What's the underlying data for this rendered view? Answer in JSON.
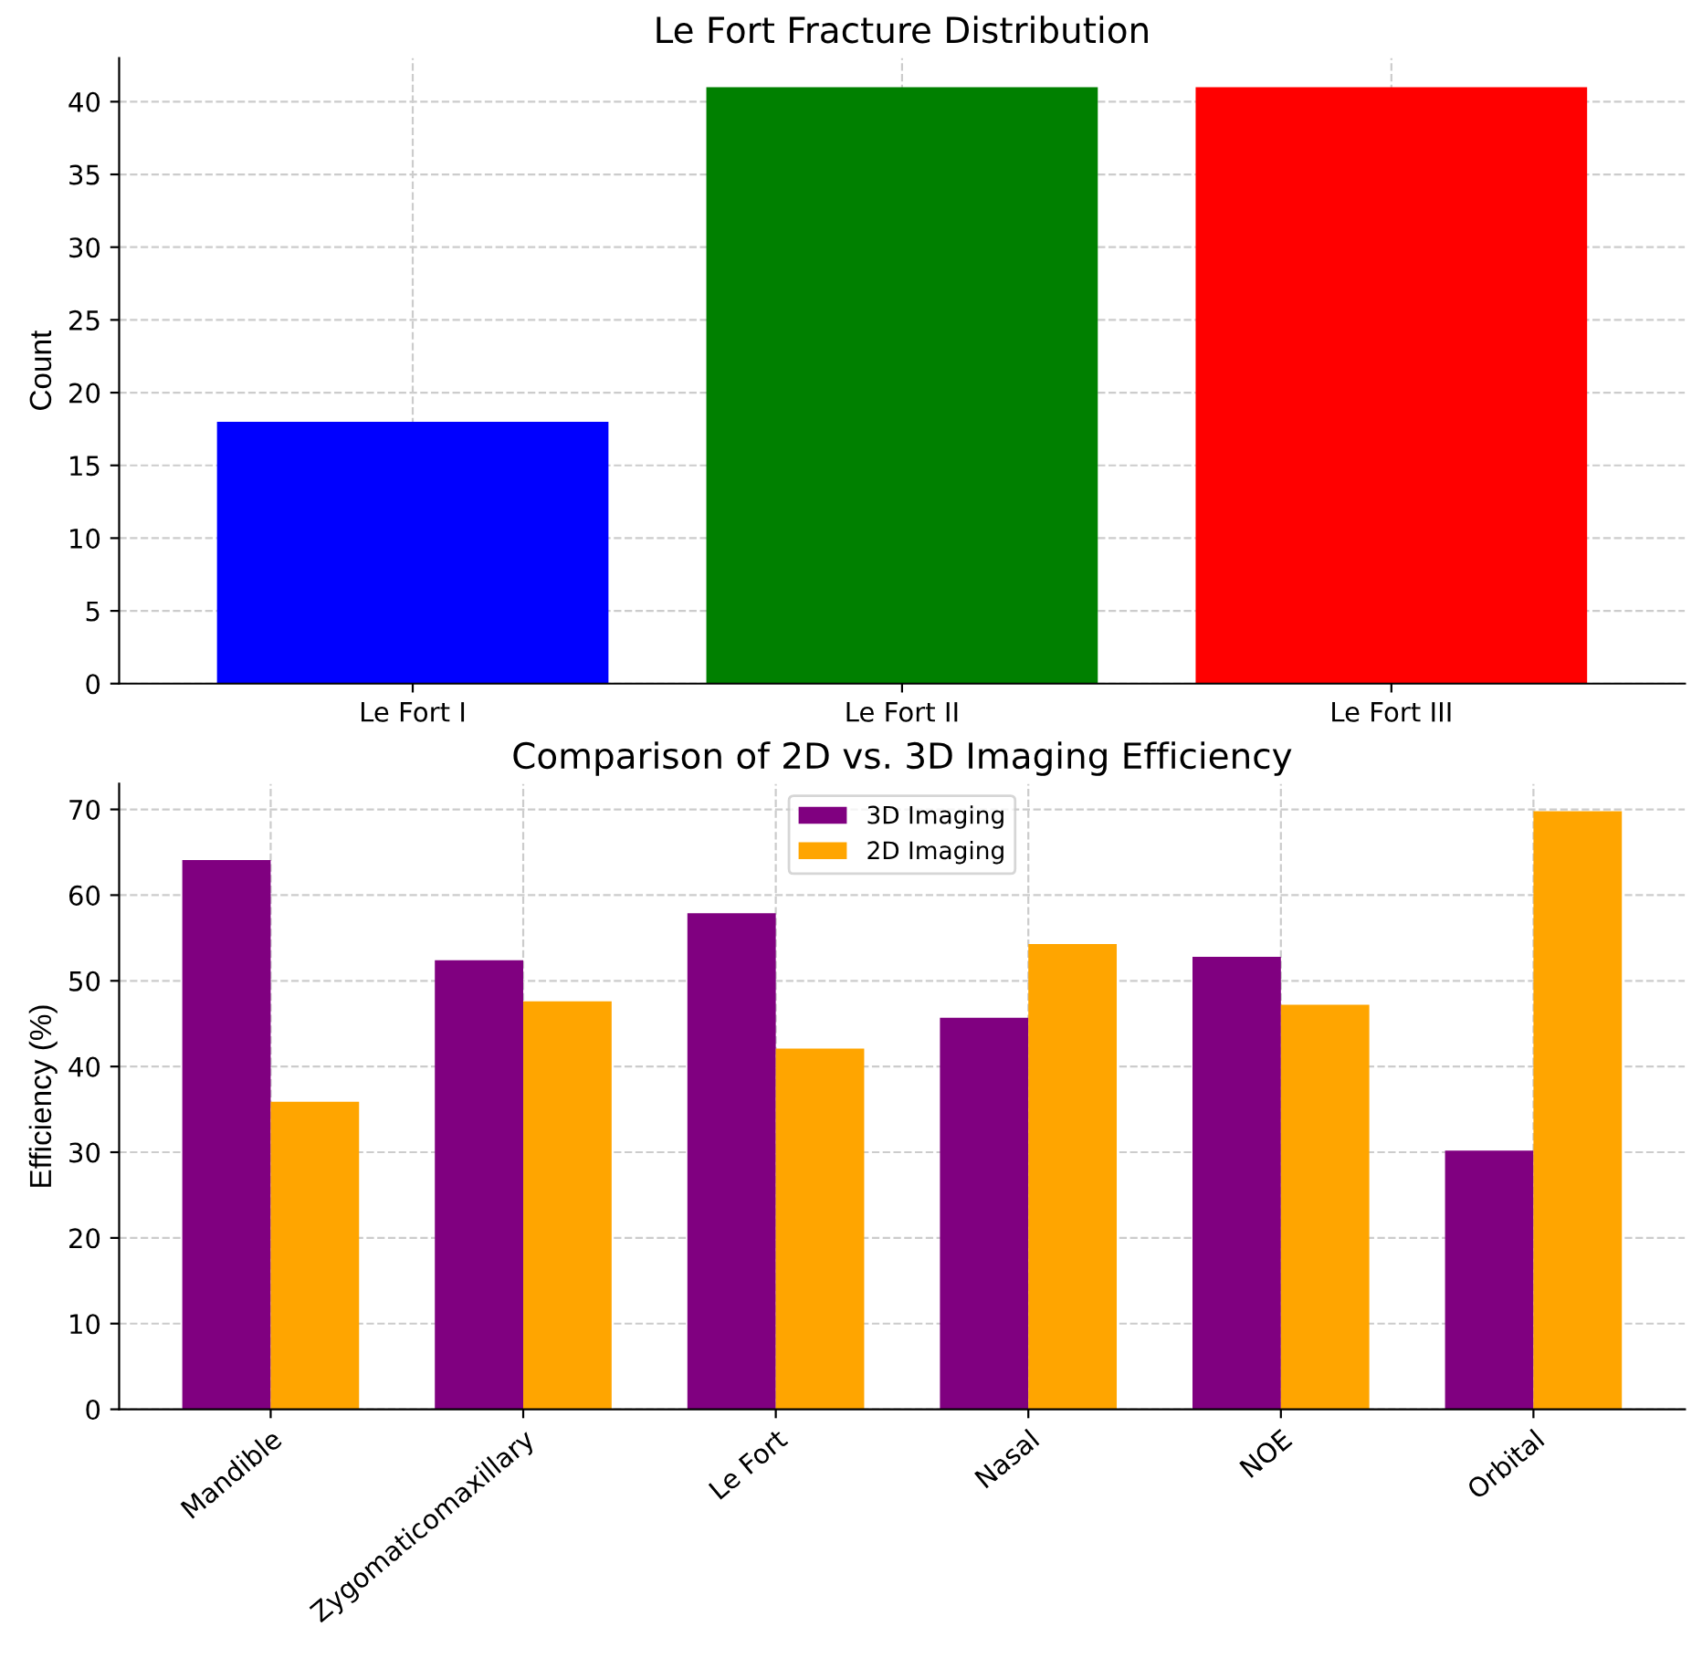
{
  "chart_data": [
    {
      "type": "bar",
      "title": "Le Fort Fracture Distribution",
      "ylabel": "Count",
      "categories": [
        "Le Fort I",
        "Le Fort II",
        "Le Fort III"
      ],
      "values": [
        18,
        41,
        41
      ],
      "colors": [
        "#0000ff",
        "#008000",
        "#ff0000"
      ],
      "ylim": [
        0,
        43
      ],
      "yticks": [
        0,
        5,
        10,
        15,
        20,
        25,
        30,
        35,
        40
      ],
      "grid": true
    },
    {
      "type": "bar",
      "title": "Comparison of 2D vs. 3D Imaging Efficiency",
      "ylabel": "Efficiency (%)",
      "categories": [
        "Mandible",
        "Zygomaticomaxillary",
        "Le Fort",
        "Nasal",
        "NOE",
        "Orbital"
      ],
      "series": [
        {
          "name": "3D Imaging",
          "color": "#800080",
          "values": [
            64.1,
            52.4,
            57.9,
            45.7,
            52.8,
            30.2
          ]
        },
        {
          "name": "2D Imaging",
          "color": "#ffa500",
          "values": [
            35.9,
            47.6,
            42.1,
            54.3,
            47.2,
            69.8
          ]
        }
      ],
      "ylim": [
        0,
        73
      ],
      "yticks": [
        0,
        10,
        20,
        30,
        40,
        50,
        60,
        70
      ],
      "grid": true,
      "legend": "top"
    }
  ]
}
